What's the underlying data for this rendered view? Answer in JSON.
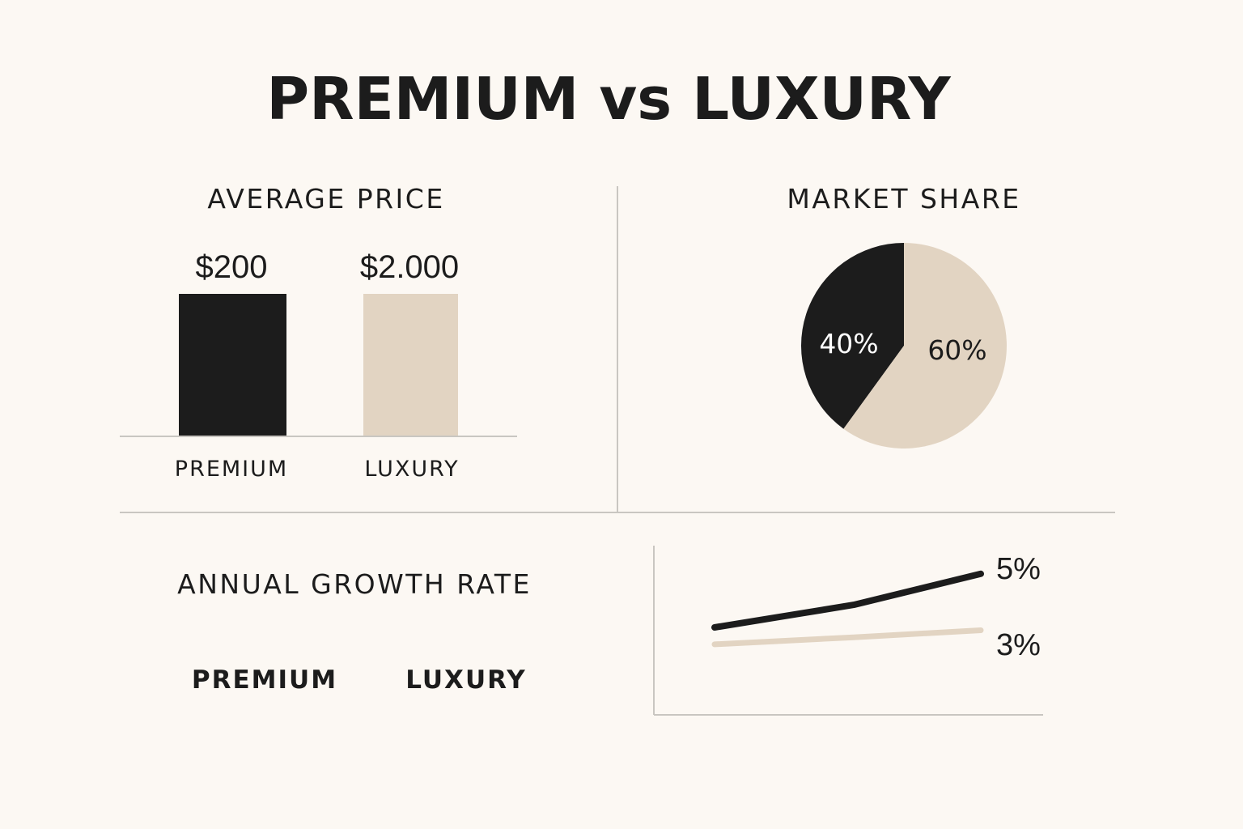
{
  "title": "PREMIUM vs LUXURY",
  "colors": {
    "background": "#fcf8f3",
    "dark": "#1c1c1c",
    "beige": "#e2d4c2",
    "divider": "#c9c6c1"
  },
  "chart_data": [
    {
      "type": "bar",
      "title": "AVERAGE PRICE",
      "categories": [
        "PREMIUM",
        "LUXURY"
      ],
      "values": [
        200,
        2000
      ],
      "value_labels": [
        "$200",
        "$2.000"
      ],
      "colors": [
        "#1c1c1c",
        "#e2d4c2"
      ],
      "xlabel": "",
      "ylabel": ""
    },
    {
      "type": "pie",
      "title": "MARKET SHARE",
      "slices": [
        {
          "label": "40%",
          "value": 40,
          "color": "#1c1c1c"
        },
        {
          "label": "60%",
          "value": 60,
          "color": "#e2d4c2"
        }
      ]
    },
    {
      "type": "line",
      "title": "ANNUAL GROWTH RATE",
      "x": [
        0,
        1,
        2
      ],
      "ylim": [
        0,
        6
      ],
      "legend_labels": [
        "PREMIUM",
        "LUXURY"
      ],
      "series": [
        {
          "name": "PREMIUM",
          "values": [
            3.1,
            3.9,
            5.0
          ],
          "end_label": "5%",
          "color": "#1c1c1c"
        },
        {
          "name": "LUXURY",
          "values": [
            2.5,
            2.75,
            3.0
          ],
          "end_label": "3%",
          "color": "#e2d4c2"
        }
      ]
    }
  ]
}
